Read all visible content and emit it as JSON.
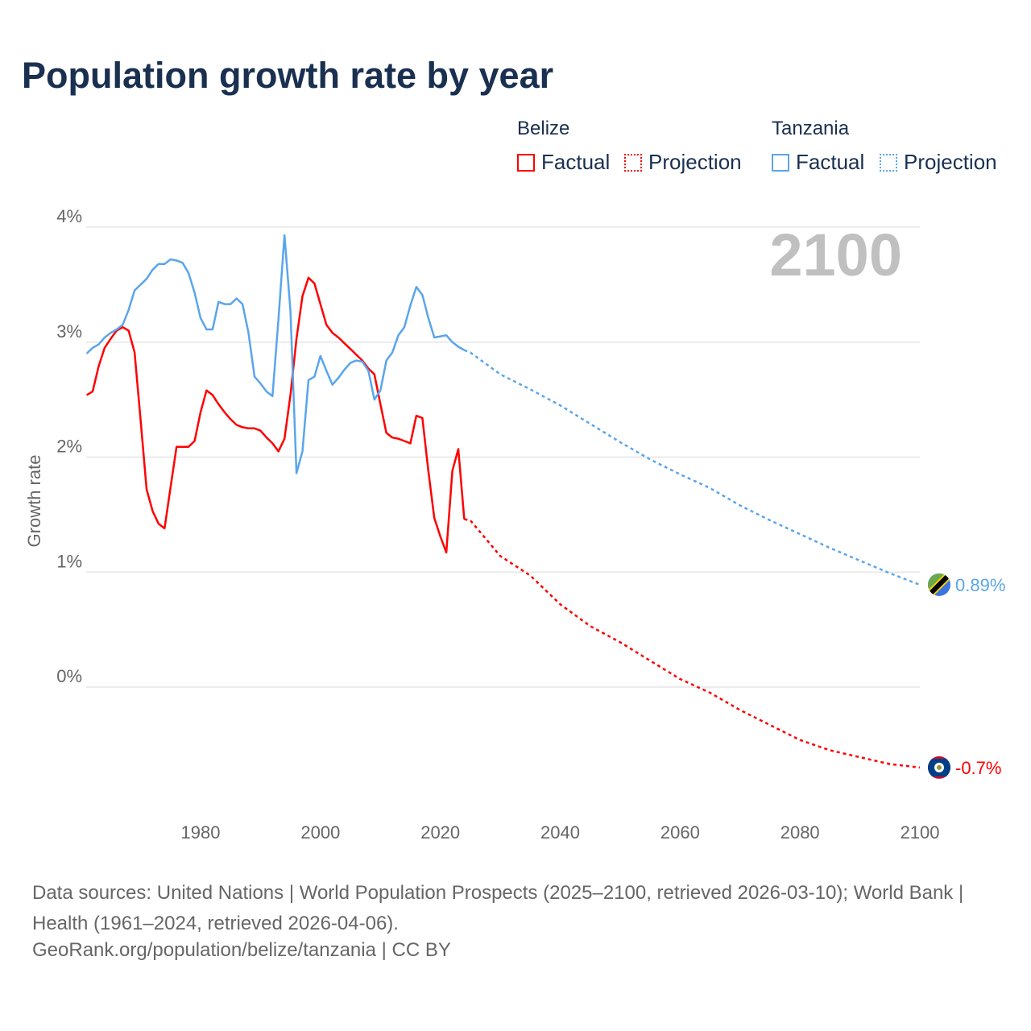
{
  "title": "Population growth rate by year",
  "legend": {
    "groups": [
      {
        "name": "Belize",
        "color": "#ff0000",
        "items": [
          "Factual",
          "Projection"
        ]
      },
      {
        "name": "Tanzania",
        "color": "#5aa5eb",
        "items": [
          "Factual",
          "Projection"
        ]
      }
    ]
  },
  "footer": {
    "sources": "Data sources: United Nations | World Population Prospects (2025–2100, retrieved 2026-03-10); World Bank | Health (1961–2024, retrieved 2026-04-06).",
    "link": "GeoRank.org/population/belize/tanzania | CC BY"
  },
  "chart_data": {
    "type": "line",
    "title": "Population growth rate by year",
    "xlabel": "",
    "ylabel": "Growth rate",
    "xlim": [
      1961,
      2100
    ],
    "ylim": [
      -1.1,
      4
    ],
    "x_ticks": [
      1980,
      2000,
      2020,
      2040,
      2060,
      2080,
      2100
    ],
    "y_ticks": [
      0,
      1,
      2,
      3,
      4
    ],
    "y_tick_labels": [
      "0%",
      "1%",
      "2%",
      "3%",
      "4%"
    ],
    "year_label": "2100",
    "series": [
      {
        "name": "Belize Factual",
        "color": "#ff0000",
        "dashed": false,
        "x_start": 1961,
        "values": [
          2.54,
          2.57,
          2.79,
          2.95,
          3.03,
          3.1,
          3.13,
          3.1,
          2.91,
          2.32,
          1.72,
          1.53,
          1.42,
          1.38,
          1.74,
          2.09,
          2.09,
          2.09,
          2.14,
          2.39,
          2.58,
          2.54,
          2.46,
          2.39,
          2.33,
          2.28,
          2.26,
          2.25,
          2.25,
          2.23,
          2.17,
          2.12,
          2.05,
          2.16,
          2.54,
          3.03,
          3.4,
          3.56,
          3.51,
          3.33,
          3.15,
          3.08,
          3.04,
          2.99,
          2.94,
          2.89,
          2.84,
          2.77,
          2.72,
          2.46,
          2.21,
          2.17,
          2.16,
          2.14,
          2.12,
          2.36,
          2.34,
          1.88,
          1.47,
          1.31,
          1.17,
          1.88,
          2.07,
          1.46
        ]
      },
      {
        "name": "Belize Projection",
        "color": "#ff0000",
        "dashed": true,
        "x": [
          2024,
          2025,
          2030,
          2035,
          2040,
          2045,
          2050,
          2055,
          2060,
          2065,
          2070,
          2075,
          2080,
          2085,
          2090,
          2095,
          2100
        ],
        "values": [
          1.46,
          1.45,
          1.14,
          0.97,
          0.72,
          0.53,
          0.39,
          0.23,
          0.07,
          -0.05,
          -0.2,
          -0.33,
          -0.46,
          -0.55,
          -0.61,
          -0.67,
          -0.7
        ]
      },
      {
        "name": "Tanzania Factual",
        "color": "#5aa5eb",
        "dashed": false,
        "x_start": 1961,
        "values": [
          2.9,
          2.95,
          2.98,
          3.04,
          3.08,
          3.11,
          3.15,
          3.28,
          3.45,
          3.5,
          3.55,
          3.63,
          3.68,
          3.68,
          3.72,
          3.71,
          3.69,
          3.6,
          3.43,
          3.21,
          3.11,
          3.11,
          3.35,
          3.33,
          3.33,
          3.38,
          3.33,
          3.08,
          2.7,
          2.64,
          2.57,
          2.53,
          3.2,
          3.93,
          3.27,
          1.86,
          2.05,
          2.67,
          2.7,
          2.88,
          2.75,
          2.63,
          2.69,
          2.76,
          2.82,
          2.84,
          2.83,
          2.75,
          2.5,
          2.58,
          2.84,
          2.91,
          3.06,
          3.13,
          3.32,
          3.48,
          3.41,
          3.21,
          3.04,
          3.05,
          3.06,
          3.0,
          2.96,
          2.93
        ]
      },
      {
        "name": "Tanzania Projection",
        "color": "#5aa5eb",
        "dashed": true,
        "x": [
          2024,
          2025,
          2030,
          2035,
          2040,
          2045,
          2050,
          2055,
          2060,
          2065,
          2070,
          2075,
          2080,
          2085,
          2090,
          2095,
          2100
        ],
        "values": [
          2.93,
          2.91,
          2.72,
          2.59,
          2.45,
          2.29,
          2.13,
          1.98,
          1.85,
          1.73,
          1.58,
          1.45,
          1.33,
          1.21,
          1.1,
          0.99,
          0.89
        ]
      }
    ],
    "end_labels": [
      {
        "country": "Tanzania",
        "text": "0.89%",
        "color": "#5aa5eb"
      },
      {
        "country": "Belize",
        "text": "-0.7%",
        "color": "#ff0000"
      }
    ]
  }
}
